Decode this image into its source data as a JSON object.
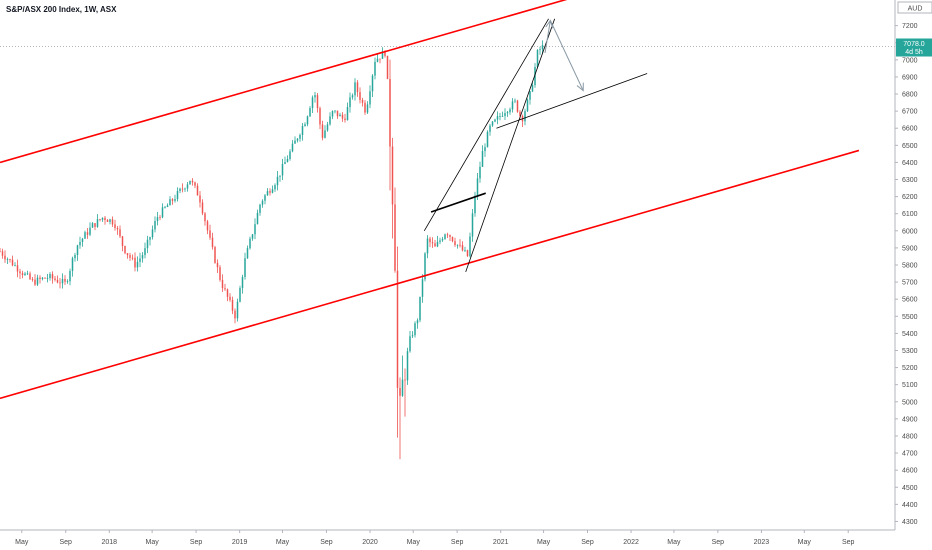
{
  "chart_data": {
    "type": "candlestick",
    "title": "S&P/ASX 200 Index, 1W, ASX",
    "currency_badge": "AUD",
    "last_price_label": "7078.0",
    "last_price_sub_label": "4d 5h",
    "last_price": 7078,
    "ylim": [
      4250,
      7350
    ],
    "xlim": [
      "2017-03-01",
      "2024-01-10"
    ],
    "y_ticks": [
      4300,
      4400,
      4500,
      4600,
      4700,
      4800,
      4900,
      5000,
      5100,
      5200,
      5300,
      5400,
      5500,
      5600,
      5700,
      5800,
      5900,
      6000,
      6100,
      6200,
      6300,
      6400,
      6500,
      6600,
      6700,
      6800,
      6900,
      7000,
      7100,
      7200
    ],
    "x_ticks": [
      {
        "label": "May",
        "date": "2017-05-01"
      },
      {
        "label": "Sep",
        "date": "2017-09-01"
      },
      {
        "label": "2018",
        "date": "2018-01-01"
      },
      {
        "label": "May",
        "date": "2018-05-01"
      },
      {
        "label": "Sep",
        "date": "2018-09-01"
      },
      {
        "label": "2019",
        "date": "2019-01-01"
      },
      {
        "label": "May",
        "date": "2019-05-01"
      },
      {
        "label": "Sep",
        "date": "2019-09-01"
      },
      {
        "label": "2020",
        "date": "2020-01-01"
      },
      {
        "label": "May",
        "date": "2020-05-01"
      },
      {
        "label": "Sep",
        "date": "2020-09-01"
      },
      {
        "label": "2021",
        "date": "2021-01-01"
      },
      {
        "label": "May",
        "date": "2021-05-01"
      },
      {
        "label": "Sep",
        "date": "2021-09-01"
      },
      {
        "label": "2022",
        "date": "2022-01-01"
      },
      {
        "label": "May",
        "date": "2022-05-01"
      },
      {
        "label": "Sep",
        "date": "2022-09-01"
      },
      {
        "label": "2023",
        "date": "2023-01-01"
      },
      {
        "label": "May",
        "date": "2023-05-01"
      },
      {
        "label": "Sep",
        "date": "2023-09-01"
      }
    ],
    "colors": {
      "up": "#26a69a",
      "down": "#ef5350",
      "channel": "#ff0000",
      "pattern": "#000000",
      "projection": "#8a9aa6",
      "axis": "#b2b5be"
    },
    "close_anchors": [
      [
        "2017-03-01",
        5880
      ],
      [
        "2017-04-15",
        5790
      ],
      [
        "2017-06-01",
        5700
      ],
      [
        "2017-07-15",
        5730
      ],
      [
        "2017-09-01",
        5690
      ],
      [
        "2017-10-01",
        5910
      ],
      [
        "2017-11-15",
        6030
      ],
      [
        "2017-12-15",
        6080
      ],
      [
        "2018-01-15",
        6050
      ],
      [
        "2018-02-10",
        5900
      ],
      [
        "2018-03-15",
        5800
      ],
      [
        "2018-04-10",
        5880
      ],
      [
        "2018-05-15",
        6080
      ],
      [
        "2018-07-01",
        6190
      ],
      [
        "2018-08-15",
        6300
      ],
      [
        "2018-09-10",
        6200
      ],
      [
        "2018-10-15",
        5900
      ],
      [
        "2018-11-10",
        5700
      ],
      [
        "2018-12-20",
        5500
      ],
      [
        "2019-01-15",
        5820
      ],
      [
        "2019-03-01",
        6170
      ],
      [
        "2019-04-15",
        6300
      ],
      [
        "2019-05-20",
        6450
      ],
      [
        "2019-07-05",
        6650
      ],
      [
        "2019-07-29",
        6820
      ],
      [
        "2019-08-20",
        6550
      ],
      [
        "2019-09-20",
        6700
      ],
      [
        "2019-10-20",
        6650
      ],
      [
        "2019-11-20",
        6850
      ],
      [
        "2019-12-20",
        6700
      ],
      [
        "2020-01-15",
        7000
      ],
      [
        "2020-02-15",
        7050
      ],
      [
        "2020-02-28",
        6450
      ],
      [
        "2020-03-10",
        5950
      ],
      [
        "2020-03-20",
        4850
      ],
      [
        "2020-04-01",
        5100
      ],
      [
        "2020-04-20",
        5350
      ],
      [
        "2020-05-15",
        5500
      ],
      [
        "2020-06-08",
        5950
      ],
      [
        "2020-07-01",
        5900
      ],
      [
        "2020-08-01",
        6000
      ],
      [
        "2020-09-01",
        5920
      ],
      [
        "2020-10-01",
        5850
      ],
      [
        "2020-10-20",
        6200
      ],
      [
        "2020-11-10",
        6450
      ],
      [
        "2020-12-01",
        6600
      ],
      [
        "2021-01-10",
        6700
      ],
      [
        "2021-02-10",
        6750
      ],
      [
        "2021-03-01",
        6650
      ],
      [
        "2021-03-25",
        6800
      ],
      [
        "2021-04-15",
        7050
      ],
      [
        "2021-04-30",
        7078
      ]
    ],
    "lines": [
      {
        "name": "channel-upper",
        "role": "channel",
        "points": [
          [
            "2017-03-01",
            6400
          ],
          [
            "2021-07-15",
            7360
          ]
        ]
      },
      {
        "name": "channel-lower",
        "role": "channel",
        "points": [
          [
            "2017-03-01",
            5020
          ],
          [
            "2023-10-01",
            6470
          ]
        ]
      },
      {
        "name": "wedge-upper",
        "role": "pattern",
        "points": [
          [
            "2020-06-01",
            6000
          ],
          [
            "2021-05-15",
            7240
          ]
        ]
      },
      {
        "name": "wedge-lower",
        "role": "pattern",
        "points": [
          [
            "2020-09-25",
            5760
          ],
          [
            "2021-06-01",
            7240
          ]
        ]
      },
      {
        "name": "wedge-support",
        "role": "pattern",
        "points": [
          [
            "2020-12-20",
            6600
          ],
          [
            "2022-02-15",
            6920
          ]
        ]
      },
      {
        "name": "pennant-top",
        "role": "pattern-bold",
        "points": [
          [
            "2020-06-20",
            6110
          ],
          [
            "2020-11-20",
            6220
          ]
        ]
      },
      {
        "name": "projection-up",
        "role": "projection",
        "points": [
          [
            "2021-05-05",
            7040
          ],
          [
            "2021-05-20",
            7230
          ]
        ]
      },
      {
        "name": "projection-down",
        "role": "projection",
        "points": [
          [
            "2021-05-20",
            7230
          ],
          [
            "2021-08-20",
            6820
          ]
        ]
      }
    ]
  }
}
